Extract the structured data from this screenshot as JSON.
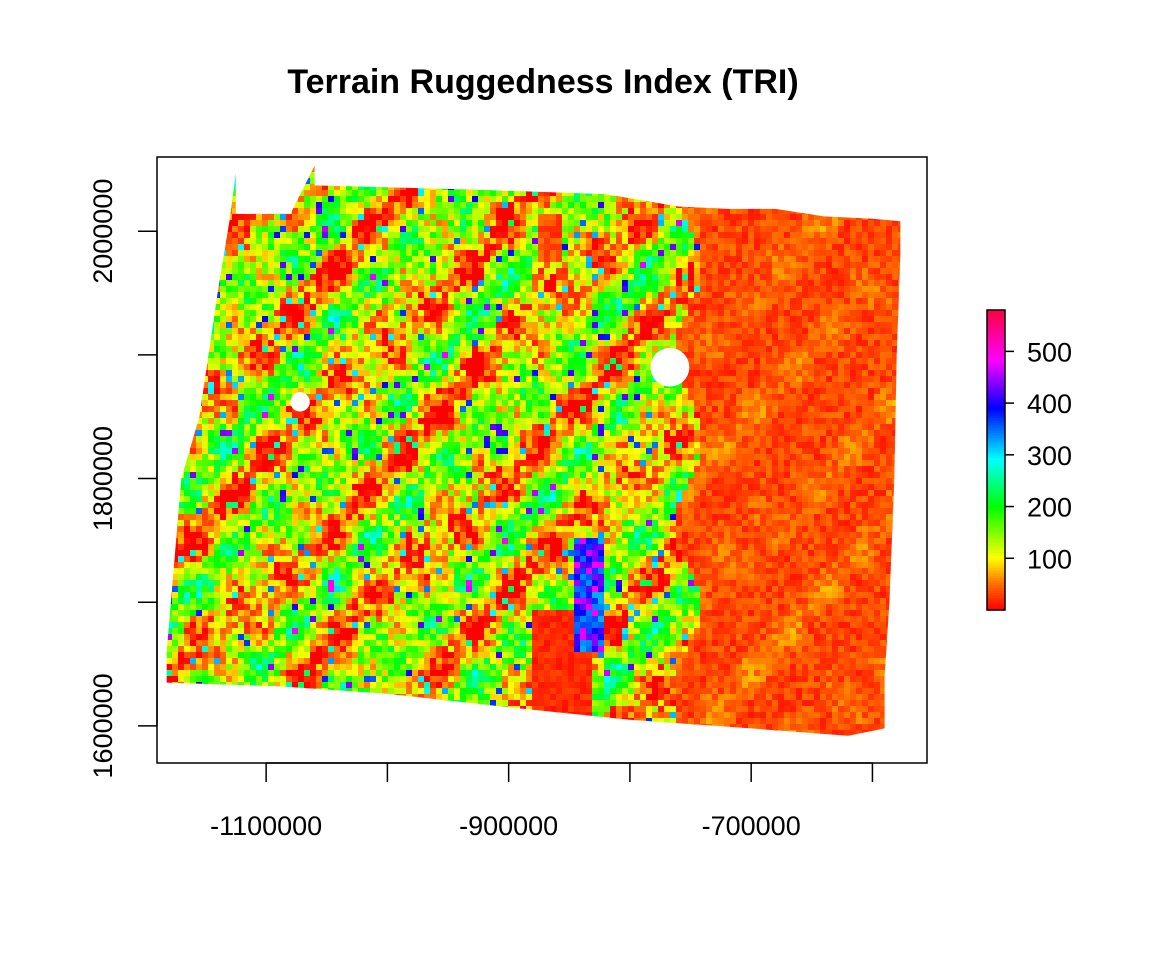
{
  "chart_data": {
    "type": "heatmap",
    "title": "Terrain Ruggedness Index (TRI)",
    "xlabel": "",
    "ylabel": "",
    "xlim": [
      -1190000,
      -555000
    ],
    "ylim": [
      1570000,
      2060000
    ],
    "x_ticks": [
      {
        "value": -1100000,
        "label": "-1100000"
      },
      {
        "value": -1000000,
        "label": ""
      },
      {
        "value": -900000,
        "label": "-900000"
      },
      {
        "value": -800000,
        "label": ""
      },
      {
        "value": -700000,
        "label": "-700000"
      },
      {
        "value": -600000,
        "label": ""
      }
    ],
    "y_ticks": [
      {
        "value": 1600000,
        "label": "1600000"
      },
      {
        "value": 1700000,
        "label": ""
      },
      {
        "value": 1800000,
        "label": "1800000"
      },
      {
        "value": 1900000,
        "label": ""
      },
      {
        "value": 2000000,
        "label": "2000000"
      }
    ],
    "grid": false,
    "raster_footprint": [
      [
        -1125000,
        2047000
      ],
      [
        -1125000,
        2014000
      ],
      [
        -1080000,
        2014000
      ],
      [
        -1060000,
        2053000
      ],
      [
        -1060000,
        2037000
      ],
      [
        -940000,
        2034000
      ],
      [
        -820000,
        2030000
      ],
      [
        -760000,
        2020000
      ],
      [
        -720000,
        2018000
      ],
      [
        -680000,
        2018000
      ],
      [
        -640000,
        2012000
      ],
      [
        -600000,
        2010000
      ],
      [
        -577000,
        2008000
      ],
      [
        -577000,
        1980000
      ],
      [
        -580000,
        1900000
      ],
      [
        -582000,
        1800000
      ],
      [
        -586000,
        1700000
      ],
      [
        -590000,
        1640000
      ],
      [
        -590000,
        1598000
      ],
      [
        -620000,
        1592000
      ],
      [
        -700000,
        1598000
      ],
      [
        -800000,
        1605000
      ],
      [
        -900000,
        1615000
      ],
      [
        -1000000,
        1626000
      ],
      [
        -1090000,
        1632000
      ],
      [
        -1182000,
        1635000
      ],
      [
        -1182000,
        1660000
      ],
      [
        -1170000,
        1800000
      ],
      [
        -1155000,
        1850000
      ],
      [
        -1140000,
        1950000
      ],
      [
        -1130000,
        2010000
      ]
    ],
    "nodata_holes": [
      {
        "x": -767000,
        "y": 1890000,
        "r": 16000
      },
      {
        "x": -1072000,
        "y": 1862000,
        "r": 8000
      }
    ],
    "value_regions": [
      {
        "label": "western rugged terrain",
        "x_range": [
          -1182000,
          -752000
        ],
        "mean_value": 180
      },
      {
        "label": "eastern plains",
        "x_range": [
          -752000,
          -577000
        ],
        "mean_value": 30
      },
      {
        "label": "southern basin",
        "x_range": [
          -880000,
          -832000
        ],
        "y_range": [
          1608000,
          1695000
        ],
        "mean_value": 15
      },
      {
        "label": "northern basin",
        "x_range": [
          -878000,
          -855000
        ],
        "y_range": [
          1975000,
          2012000
        ],
        "mean_value": 30
      },
      {
        "label": "ridge north of basin",
        "x_range": [
          -845000,
          -820000
        ],
        "y_range": [
          1660000,
          1750000
        ],
        "mean_value": 450
      }
    ],
    "legend": {
      "placement": "right",
      "min": 0,
      "max": 580,
      "ticks": [
        {
          "value": 100,
          "label": "100"
        },
        {
          "value": 200,
          "label": "200"
        },
        {
          "value": 300,
          "label": "300"
        },
        {
          "value": 400,
          "label": "400"
        },
        {
          "value": 500,
          "label": "500"
        }
      ],
      "colormap": "rainbow: red - orange - yellow - green - cyan - blue - magenta - red"
    },
    "colors": {
      "low": "#ff0000",
      "mid": "#00ff00",
      "high": "#ff0080"
    }
  }
}
